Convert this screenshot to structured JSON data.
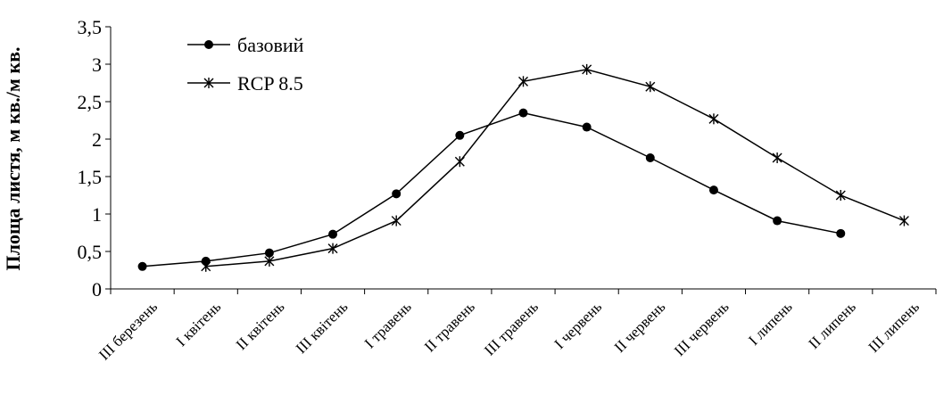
{
  "chart_data": {
    "type": "line",
    "title": "",
    "xlabel": "",
    "ylabel": "Площа листя, м кв./м кв.",
    "categories": [
      "III березень",
      "I квітень",
      "II квітень",
      "III квітень",
      "I травень",
      "II травень",
      "III травень",
      "I червень",
      "II червень",
      "III червень",
      "I липень",
      "II липень",
      "III липень"
    ],
    "ylim": [
      0,
      3.5
    ],
    "yticks": [
      "0",
      "0,5",
      "1",
      "1,5",
      "2",
      "2,5",
      "3",
      "3,5"
    ],
    "grid": false,
    "legend_position": "top-left",
    "series": [
      {
        "name": "базовий",
        "marker": "circle",
        "color": "#000000",
        "values": [
          0.3,
          0.37,
          0.48,
          0.73,
          1.27,
          2.05,
          2.35,
          2.16,
          1.75,
          1.32,
          0.91,
          0.74,
          null
        ]
      },
      {
        "name": "RCP 8.5",
        "marker": "asterisk",
        "color": "#000000",
        "values": [
          null,
          0.3,
          0.37,
          0.54,
          0.91,
          1.7,
          2.77,
          2.93,
          2.7,
          2.27,
          1.75,
          1.25,
          0.91
        ]
      }
    ]
  }
}
